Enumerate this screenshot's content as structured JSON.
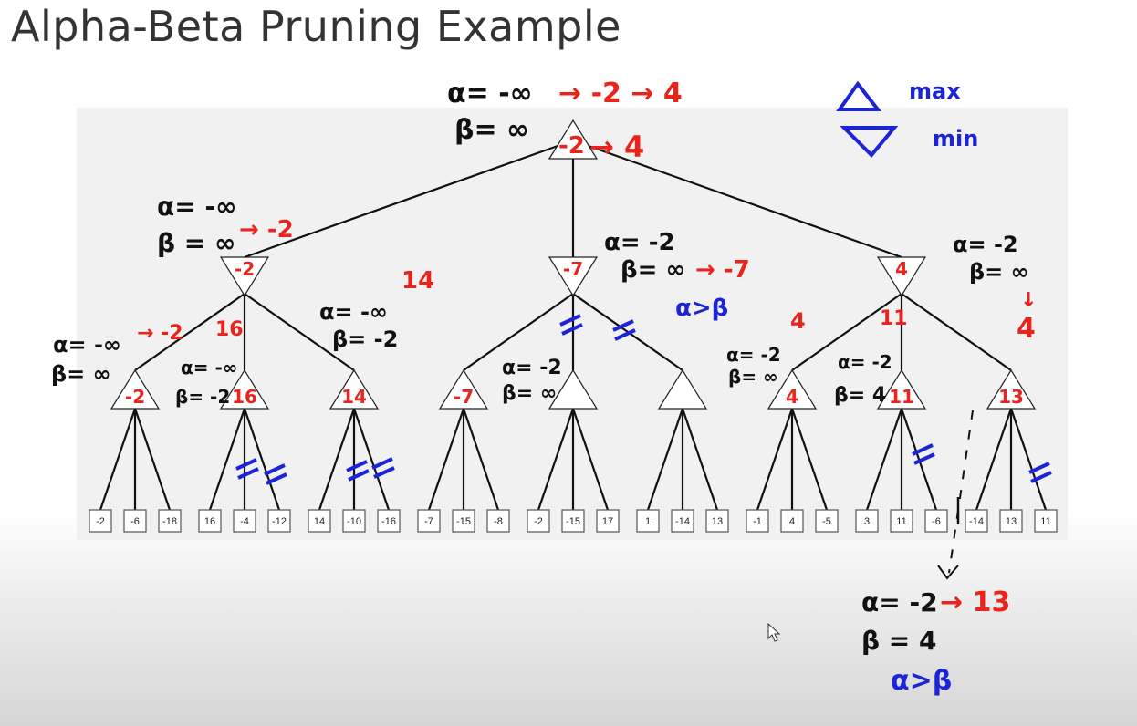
{
  "title": "Alpha-Beta Pruning Example",
  "legend": {
    "max_label": "max",
    "min_label": "min"
  },
  "root": {
    "alpha_label": "α= -∞",
    "alpha_updates": "→ -2 → 4",
    "beta_label": "β= ∞",
    "value_old": "-2",
    "value_new": "→ 4"
  },
  "min_nodes": [
    {
      "value": "-2",
      "alpha": "α= -∞",
      "beta": "β = ∞",
      "beta_update": "→ -2"
    },
    {
      "value": "-7",
      "alpha": "α= -2",
      "beta": "β= ∞",
      "beta_update": "→ -7",
      "note": "α>β"
    },
    {
      "value": "4",
      "alpha": "α= -2",
      "beta": "β= ∞",
      "beta_update": "↓",
      "result": "4"
    }
  ],
  "max_nodes": [
    {
      "value": "-2",
      "alpha": "α= -∞",
      "alpha_update": "→ -2",
      "beta": "β= ∞"
    },
    {
      "value": "16",
      "alpha": "α= -∞",
      "beta": "β= -2",
      "update": "16"
    },
    {
      "value": "14",
      "alpha": "α= -∞",
      "alpha_update": "14",
      "beta": "β= -2"
    },
    {
      "value": "-7",
      "alpha": "",
      "beta": ""
    },
    {
      "value": "",
      "alpha": "α= -2",
      "beta": "β= ∞"
    },
    {
      "value": "",
      "alpha": "",
      "beta": ""
    },
    {
      "value": "4",
      "alpha": "α= -2",
      "alpha_update": "4",
      "beta": "β= ∞"
    },
    {
      "value": "11",
      "alpha": "α= -2",
      "alpha_update": "11",
      "beta": "β= 4"
    },
    {
      "value": "13",
      "alpha": "",
      "beta": ""
    }
  ],
  "leaves": [
    "-2",
    "-6",
    "-18",
    "16",
    "-4",
    "-12",
    "14",
    "-10",
    "-16",
    "-7",
    "-15",
    "-8",
    "-2",
    "-15",
    "17",
    "1",
    "-14",
    "13",
    "-1",
    "4",
    "-5",
    "3",
    "11",
    "-6",
    "-14",
    "13",
    "11"
  ],
  "bottom_note": {
    "alpha": "α= -2",
    "alpha_update": "→ 13",
    "beta": "β = 4",
    "note": "α>β"
  }
}
